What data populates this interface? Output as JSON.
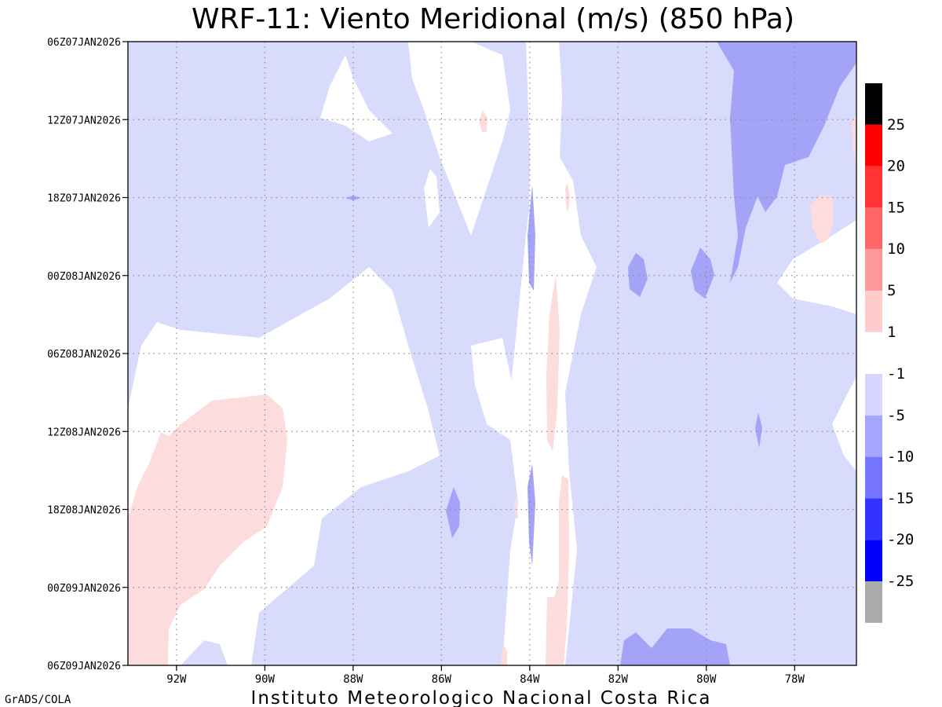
{
  "chart_data": {
    "type": "heatmap",
    "title": "WRF-11: Viento Meridional (m/s) (850 hPa)",
    "footer": "Instituto Meteorologico Nacional Costa Rica",
    "credit": "GrADS/COLA",
    "xlabel": "",
    "ylabel": "",
    "x_range": [
      -93.1,
      -76.6
    ],
    "x_ticks": [
      {
        "value": -92,
        "label": "92W"
      },
      {
        "value": -90,
        "label": "90W"
      },
      {
        "value": -88,
        "label": "88W"
      },
      {
        "value": -86,
        "label": "86W"
      },
      {
        "value": -84,
        "label": "84W"
      },
      {
        "value": -82,
        "label": "82W"
      },
      {
        "value": -80,
        "label": "80W"
      },
      {
        "value": -78,
        "label": "78W"
      }
    ],
    "y_ticks": [
      {
        "hours": 0,
        "label": "06Z07JAN2026"
      },
      {
        "hours": 6,
        "label": "12Z07JAN2026"
      },
      {
        "hours": 12,
        "label": "18Z07JAN2026"
      },
      {
        "hours": 18,
        "label": "00Z08JAN2026"
      },
      {
        "hours": 24,
        "label": "06Z08JAN2026"
      },
      {
        "hours": 30,
        "label": "12Z08JAN2026"
      },
      {
        "hours": 36,
        "label": "18Z08JAN2026"
      },
      {
        "hours": 42,
        "label": "00Z09JAN2026"
      },
      {
        "hours": 48,
        "label": "06Z09JAN2026"
      }
    ],
    "y_range_hours": [
      0,
      48
    ],
    "grid": true,
    "colorbar": {
      "positive": [
        {
          "color": "#000000",
          "label": ""
        },
        {
          "color": "#ff0000",
          "label": "25"
        },
        {
          "color": "#ff3333",
          "label": "20"
        },
        {
          "color": "#ff6666",
          "label": "15"
        },
        {
          "color": "#ff9999",
          "label": "10"
        },
        {
          "color": "#ffcccc",
          "label": "5"
        },
        {
          "color": "",
          "label": "1"
        }
      ],
      "negative": [
        {
          "color": "#d6d6ff",
          "label": "-1"
        },
        {
          "color": "#a6a6ff",
          "label": "-5"
        },
        {
          "color": "#7575ff",
          "label": "-10"
        },
        {
          "color": "#3333ff",
          "label": "-15"
        },
        {
          "color": "#0000ff",
          "label": "-20"
        },
        {
          "color": "#aaaaaa",
          "label": "-25"
        }
      ]
    },
    "colors": {
      "neg_1_5": "#d9dbfd",
      "neg_5_10": "#a3a3f7",
      "pos_1_5": "#fcdcdc",
      "background": "#ffffff"
    }
  }
}
